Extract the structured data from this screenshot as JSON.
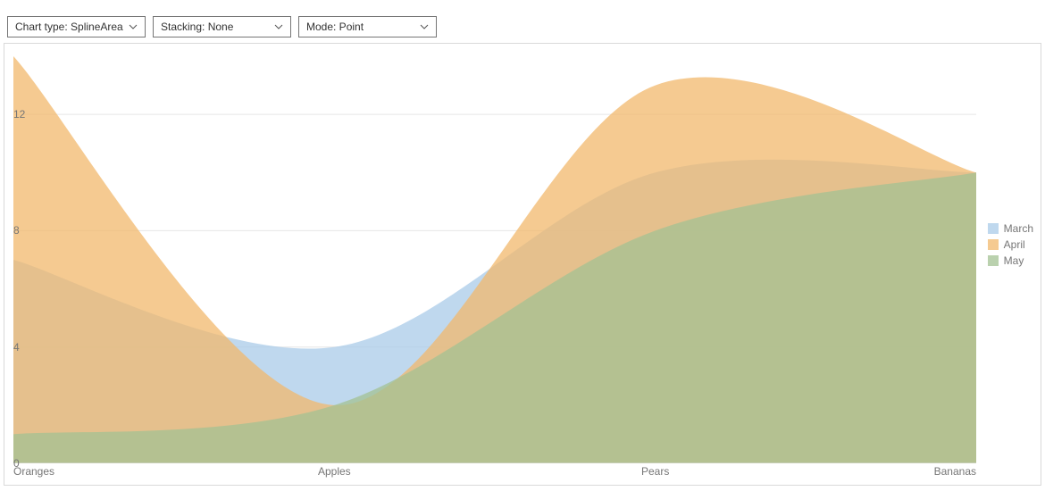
{
  "toolbar": {
    "chart_type": {
      "label": "Chart type: SplineArea"
    },
    "stacking": {
      "label": "Stacking: None"
    },
    "mode": {
      "label": "Mode: Point"
    }
  },
  "chart": {
    "type": "spline-area",
    "categories": [
      "Oranges",
      "Apples",
      "Pears",
      "Bananas"
    ],
    "y_axis": {
      "min": 0,
      "max": 14,
      "ticks": [
        0,
        4,
        8,
        12
      ],
      "grid_color": "#e6e6e6",
      "axis_color": "#d9d9d9"
    },
    "x_axis": {
      "axis_color": "#d9d9d9"
    },
    "background_color": "#ffffff",
    "label_color": "#767676",
    "label_fontsize": 12,
    "series": [
      {
        "name": "March",
        "color": "#a9cbe8",
        "opacity": 0.75,
        "values": [
          7,
          4,
          10,
          10
        ]
      },
      {
        "name": "April",
        "color": "#f1b86c",
        "opacity": 0.75,
        "values": [
          14,
          2,
          13,
          10
        ]
      },
      {
        "name": "May",
        "color": "#a3c293",
        "opacity": 0.75,
        "values": [
          1,
          2,
          8,
          10
        ]
      }
    ],
    "legend": {
      "position": "right",
      "items": [
        "March",
        "April",
        "May"
      ]
    }
  }
}
